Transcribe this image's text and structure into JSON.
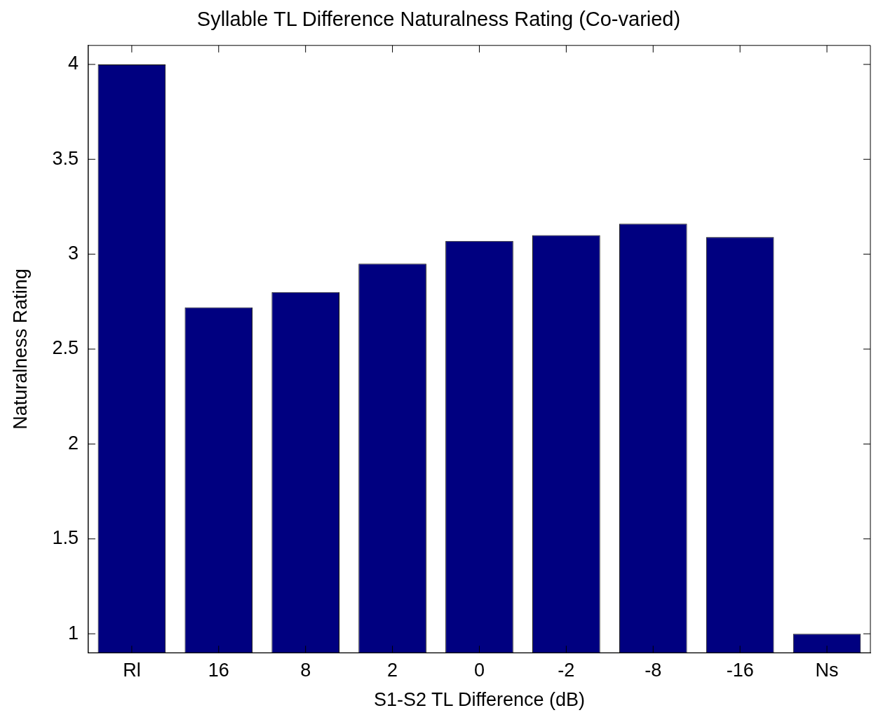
{
  "chart_data": {
    "type": "bar",
    "title": "Syllable TL Difference Naturalness Rating (Co-varied)",
    "xlabel": "S1-S2 TL Difference (dB)",
    "ylabel": "Naturalness Rating",
    "categories": [
      "Rl",
      "16",
      "8",
      "2",
      "0",
      "-2",
      "-8",
      "-16",
      "Ns"
    ],
    "values": [
      4.0,
      2.72,
      2.8,
      2.95,
      3.07,
      3.1,
      3.16,
      3.09,
      1.0
    ],
    "color": "#000080",
    "ylim": [
      0.9,
      4.1
    ],
    "yticks": [
      1,
      1.5,
      2,
      2.5,
      3,
      3.5,
      4
    ],
    "grid": false,
    "legend": false
  }
}
